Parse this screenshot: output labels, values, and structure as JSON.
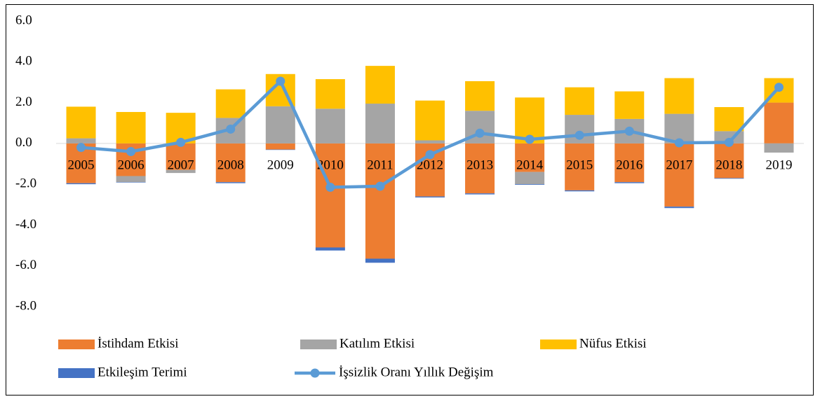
{
  "chart_data": {
    "type": "bar",
    "stacked": true,
    "categories": [
      "2005",
      "2006",
      "2007",
      "2008",
      "2009",
      "2010",
      "2011",
      "2012",
      "2013",
      "2014",
      "2015",
      "2016",
      "2017",
      "2018",
      "2019"
    ],
    "series": [
      {
        "name": "İstihdam Etkisi",
        "type": "bar",
        "color": "#ed7d31",
        "values": [
          -1.95,
          -1.6,
          -1.3,
          -1.9,
          -0.3,
          -5.1,
          -5.65,
          -2.6,
          -2.45,
          -1.4,
          -2.3,
          -1.9,
          -3.1,
          -1.7,
          2.0
        ]
      },
      {
        "name": "Katılım Etkisi",
        "type": "bar",
        "color": "#a5a5a5",
        "values": [
          0.25,
          -0.3,
          -0.15,
          1.25,
          1.82,
          1.7,
          1.95,
          0.15,
          1.6,
          -0.6,
          1.4,
          1.2,
          1.45,
          0.6,
          -0.45
        ]
      },
      {
        "name": "Nüfus Etkisi",
        "type": "bar",
        "color": "#ffc000",
        "values": [
          1.55,
          1.54,
          1.5,
          1.4,
          1.58,
          1.45,
          1.85,
          1.95,
          1.45,
          2.25,
          1.35,
          1.35,
          1.75,
          1.18,
          1.2
        ]
      },
      {
        "name": "Etkileşim Terimi",
        "type": "bar",
        "color": "#4472c4",
        "values": [
          -0.05,
          -0.02,
          0,
          -0.05,
          -0.02,
          -0.15,
          -0.2,
          -0.05,
          -0.05,
          -0.03,
          -0.05,
          -0.05,
          -0.07,
          -0.03,
          0
        ]
      },
      {
        "name": "İşsizlik Oranı Yıllık Değişim",
        "type": "line",
        "color": "#5b9bd5",
        "values": [
          -0.2,
          -0.4,
          0.05,
          0.7,
          3.05,
          -2.15,
          -2.1,
          -0.55,
          0.5,
          0.2,
          0.4,
          0.6,
          0.03,
          0.05,
          2.75
        ]
      }
    ],
    "ylim": [
      -8,
      6
    ],
    "yticks": [
      {
        "value": 6,
        "label": "6.0"
      },
      {
        "value": 4,
        "label": "4.0"
      },
      {
        "value": 2,
        "label": "2.0"
      },
      {
        "value": 0,
        "label": "0.0"
      },
      {
        "value": -2,
        "label": "-2.0"
      },
      {
        "value": -4,
        "label": "-4.0"
      },
      {
        "value": -6,
        "label": "-6.0"
      },
      {
        "value": -8,
        "label": "-8.0"
      }
    ]
  }
}
